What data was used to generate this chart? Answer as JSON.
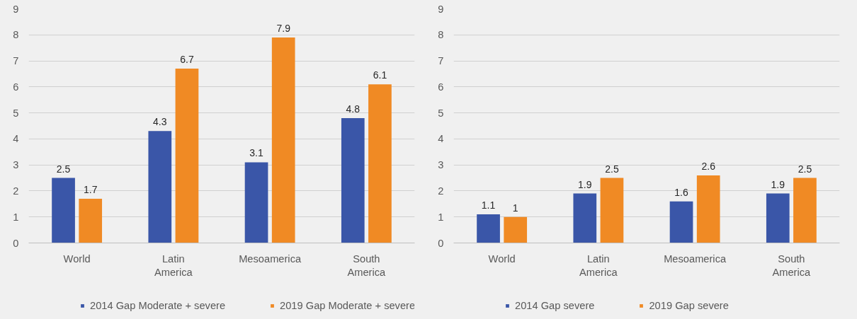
{
  "chart_data": [
    {
      "type": "bar",
      "categories": [
        "World",
        "Latin America",
        "Mesoamerica",
        "South America"
      ],
      "series": [
        {
          "name": "2014 Gap Moderate + severe",
          "color": "#3a56a8",
          "values": [
            2.5,
            4.3,
            3.1,
            4.8
          ]
        },
        {
          "name": "2019 Gap Moderate + severe",
          "color": "#f08a24",
          "values": [
            1.7,
            6.7,
            7.9,
            6.1
          ]
        }
      ],
      "ylim": [
        0,
        9
      ],
      "yticks": [
        0,
        1,
        2,
        3,
        4,
        5,
        6,
        7,
        8,
        9
      ],
      "grid": "y",
      "legend": "bottom",
      "data_labels": true
    },
    {
      "type": "bar",
      "categories": [
        "World",
        "Latin America",
        "Mesoamerica",
        "South America"
      ],
      "series": [
        {
          "name": "2014 Gap severe",
          "color": "#3a56a8",
          "values": [
            1.1,
            1.9,
            1.6,
            1.9
          ]
        },
        {
          "name": "2019 Gap severe",
          "color": "#f08a24",
          "values": [
            1,
            2.5,
            2.6,
            2.5
          ]
        }
      ],
      "ylim": [
        0,
        9
      ],
      "yticks": [
        0,
        1,
        2,
        3,
        4,
        5,
        6,
        7,
        8,
        9
      ],
      "grid": "y",
      "legend": "bottom",
      "data_labels": true
    }
  ]
}
